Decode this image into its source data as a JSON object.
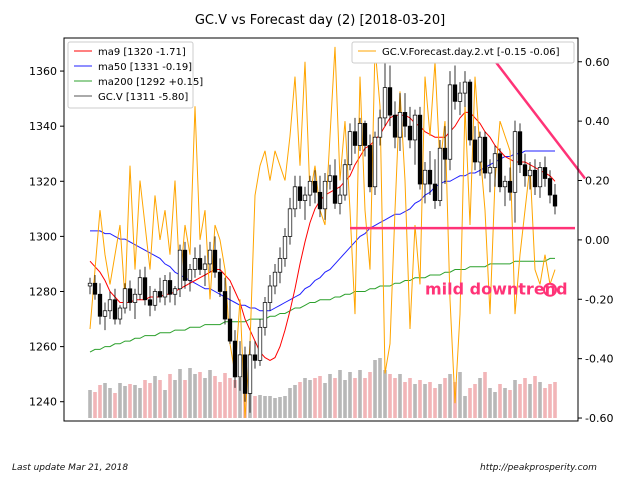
{
  "chart_data": {
    "type": "candlestick",
    "title": "GC.V vs Forecast day (2)  [2018-03-20]",
    "xlabel": "",
    "ylabel": "",
    "ylim": [
      1233,
      1372
    ],
    "yticks": [
      1240,
      1260,
      1280,
      1300,
      1320,
      1340,
      1360
    ],
    "y2lim": [
      -0.61,
      0.68
    ],
    "y2ticks": [
      "0.60",
      "0.40",
      "0.20",
      "0.00",
      "-0.20",
      "-0.40",
      "-0.60"
    ],
    "y2tick_values": [
      0.6,
      0.4,
      0.2,
      0.0,
      -0.2,
      -0.4,
      -0.6
    ],
    "grid": false,
    "legend_left": [
      {
        "label": "ma9 [1320 -1.71]",
        "color": "#ff0000"
      },
      {
        "label": "ma50 [1331 -0.19]",
        "color": "#1f1fff"
      },
      {
        "label": "ma200 [1292 +0.15]",
        "color": "#2ca02c"
      },
      {
        "label": "GC.V [1311 -5.80]",
        "color": "#555555"
      }
    ],
    "legend_right": [
      {
        "label": "GC.V.Forecast.day.2.vt [-0.15 -0.06]",
        "color": "#ffa500"
      }
    ],
    "candles": [
      [
        1282,
        1285,
        1279,
        1283
      ],
      [
        1283,
        1286,
        1277,
        1279
      ],
      [
        1279,
        1283,
        1268,
        1271
      ],
      [
        1271,
        1276,
        1266,
        1273
      ],
      [
        1273,
        1280,
        1270,
        1277
      ],
      [
        1277,
        1281,
        1268,
        1270
      ],
      [
        1270,
        1275,
        1268,
        1274
      ],
      [
        1274,
        1283,
        1272,
        1281
      ],
      [
        1281,
        1284,
        1273,
        1276
      ],
      [
        1276,
        1281,
        1270,
        1279
      ],
      [
        1279,
        1288,
        1277,
        1285
      ],
      [
        1285,
        1289,
        1275,
        1277
      ],
      [
        1277,
        1282,
        1271,
        1275
      ],
      [
        1275,
        1281,
        1273,
        1280
      ],
      [
        1280,
        1285,
        1276,
        1278
      ],
      [
        1278,
        1286,
        1275,
        1284
      ],
      [
        1284,
        1287,
        1276,
        1279
      ],
      [
        1279,
        1282,
        1275,
        1281
      ],
      [
        1281,
        1297,
        1278,
        1295
      ],
      [
        1295,
        1298,
        1281,
        1284
      ],
      [
        1284,
        1290,
        1280,
        1288
      ],
      [
        1288,
        1296,
        1285,
        1292
      ],
      [
        1292,
        1297,
        1286,
        1288
      ],
      [
        1288,
        1293,
        1282,
        1290
      ],
      [
        1290,
        1298,
        1287,
        1295
      ],
      [
        1295,
        1300,
        1285,
        1287
      ],
      [
        1287,
        1292,
        1278,
        1280
      ],
      [
        1280,
        1285,
        1268,
        1270
      ],
      [
        1270,
        1282,
        1261,
        1262
      ],
      [
        1262,
        1266,
        1245,
        1249
      ],
      [
        1249,
        1262,
        1244,
        1257
      ],
      [
        1257,
        1260,
        1240,
        1243
      ],
      [
        1243,
        1262,
        1236,
        1257
      ],
      [
        1257,
        1262,
        1252,
        1255
      ],
      [
        1255,
        1270,
        1253,
        1267
      ],
      [
        1267,
        1278,
        1264,
        1276
      ],
      [
        1276,
        1286,
        1273,
        1282
      ],
      [
        1282,
        1290,
        1279,
        1287
      ],
      [
        1287,
        1296,
        1283,
        1292
      ],
      [
        1292,
        1303,
        1289,
        1300
      ],
      [
        1300,
        1314,
        1297,
        1310
      ],
      [
        1310,
        1322,
        1307,
        1318
      ],
      [
        1318,
        1322,
        1310,
        1313
      ],
      [
        1313,
        1318,
        1306,
        1315
      ],
      [
        1315,
        1322,
        1311,
        1320
      ],
      [
        1320,
        1324,
        1312,
        1316
      ],
      [
        1316,
        1322,
        1307,
        1310
      ],
      [
        1310,
        1323,
        1306,
        1320
      ],
      [
        1320,
        1326,
        1317,
        1322
      ],
      [
        1322,
        1328,
        1310,
        1312
      ],
      [
        1312,
        1318,
        1308,
        1315
      ],
      [
        1315,
        1328,
        1313,
        1326
      ],
      [
        1326,
        1341,
        1324,
        1338
      ],
      [
        1338,
        1343,
        1330,
        1333
      ],
      [
        1333,
        1343,
        1331,
        1341
      ],
      [
        1341,
        1342,
        1329,
        1333
      ],
      [
        1333,
        1337,
        1316,
        1318
      ],
      [
        1318,
        1338,
        1315,
        1336
      ],
      [
        1336,
        1346,
        1333,
        1343
      ],
      [
        1343,
        1366,
        1340,
        1354
      ],
      [
        1354,
        1362,
        1340,
        1344
      ],
      [
        1344,
        1349,
        1332,
        1336
      ],
      [
        1336,
        1352,
        1331,
        1345
      ],
      [
        1345,
        1352,
        1336,
        1340
      ],
      [
        1340,
        1347,
        1332,
        1335
      ],
      [
        1335,
        1346,
        1326,
        1344
      ],
      [
        1344,
        1347,
        1317,
        1319
      ],
      [
        1319,
        1327,
        1312,
        1324
      ],
      [
        1324,
        1331,
        1315,
        1319
      ],
      [
        1319,
        1328,
        1310,
        1313
      ],
      [
        1313,
        1335,
        1311,
        1332
      ],
      [
        1332,
        1340,
        1319,
        1328
      ],
      [
        1328,
        1360,
        1324,
        1355
      ],
      [
        1355,
        1362,
        1346,
        1349
      ],
      [
        1349,
        1356,
        1344,
        1352
      ],
      [
        1352,
        1360,
        1347,
        1356
      ],
      [
        1356,
        1357,
        1333,
        1335
      ],
      [
        1335,
        1340,
        1324,
        1327
      ],
      [
        1327,
        1338,
        1322,
        1336
      ],
      [
        1336,
        1338,
        1321,
        1323
      ],
      [
        1323,
        1328,
        1316,
        1325
      ],
      [
        1325,
        1333,
        1318,
        1330
      ],
      [
        1330,
        1332,
        1316,
        1318
      ],
      [
        1318,
        1322,
        1311,
        1320
      ],
      [
        1320,
        1325,
        1313,
        1316
      ],
      [
        1316,
        1342,
        1305,
        1338
      ],
      [
        1338,
        1341,
        1323,
        1326
      ],
      [
        1326,
        1330,
        1318,
        1322
      ],
      [
        1322,
        1327,
        1317,
        1324
      ],
      [
        1324,
        1328,
        1315,
        1318
      ],
      [
        1318,
        1327,
        1314,
        1325
      ],
      [
        1325,
        1329,
        1318,
        1321
      ],
      [
        1321,
        1324,
        1312,
        1315
      ],
      [
        1315,
        1319,
        1308,
        1311
      ]
    ],
    "ma9": [
      1291,
      1289,
      1287,
      1284,
      1280,
      1278,
      1276,
      1276,
      1276,
      1277,
      1277,
      1277,
      1278,
      1278,
      1278,
      1279,
      1279,
      1280,
      1281,
      1282,
      1283,
      1284,
      1285,
      1286,
      1287,
      1288,
      1288,
      1286,
      1284,
      1280,
      1276,
      1270,
      1266,
      1262,
      1258,
      1256,
      1255,
      1256,
      1260,
      1266,
      1273,
      1281,
      1290,
      1298,
      1305,
      1310,
      1313,
      1315,
      1316,
      1317,
      1318,
      1320,
      1322,
      1326,
      1329,
      1332,
      1333,
      1335,
      1337,
      1340,
      1343,
      1344,
      1344,
      1344,
      1343,
      1341,
      1340,
      1338,
      1337,
      1336,
      1336,
      1336,
      1338,
      1340,
      1343,
      1345,
      1345,
      1343,
      1341,
      1338,
      1336,
      1333,
      1331,
      1329,
      1328,
      1327,
      1327,
      1327,
      1326,
      1325,
      1324,
      1323,
      1322,
      1320
    ],
    "ma50": [
      1302,
      1302,
      1302,
      1301,
      1301,
      1300,
      1299,
      1299,
      1298,
      1297,
      1296,
      1295,
      1294,
      1293,
      1292,
      1290,
      1289,
      1287,
      1286,
      1285,
      1284,
      1283,
      1282,
      1281,
      1281,
      1280,
      1279,
      1278,
      1277,
      1276,
      1275,
      1275,
      1274,
      1274,
      1273,
      1273,
      1273,
      1274,
      1275,
      1276,
      1277,
      1278,
      1279,
      1281,
      1282,
      1284,
      1285,
      1287,
      1288,
      1290,
      1292,
      1294,
      1296,
      1298,
      1300,
      1301,
      1303,
      1304,
      1305,
      1306,
      1307,
      1308,
      1308,
      1309,
      1310,
      1312,
      1313,
      1315,
      1316,
      1318,
      1319,
      1320,
      1320,
      1321,
      1322,
      1322,
      1323,
      1323,
      1324,
      1325,
      1326,
      1327,
      1328,
      1329,
      1329,
      1330,
      1330,
      1331,
      1331,
      1331,
      1331,
      1331,
      1331,
      1331
    ],
    "ma200": [
      1258,
      1259,
      1259,
      1260,
      1260,
      1261,
      1261,
      1262,
      1262,
      1263,
      1263,
      1264,
      1264,
      1264,
      1265,
      1265,
      1265,
      1266,
      1266,
      1266,
      1267,
      1267,
      1267,
      1268,
      1268,
      1268,
      1268,
      1269,
      1269,
      1269,
      1269,
      1269,
      1270,
      1270,
      1270,
      1270,
      1271,
      1271,
      1272,
      1272,
      1273,
      1274,
      1274,
      1275,
      1276,
      1276,
      1277,
      1277,
      1277,
      1278,
      1278,
      1279,
      1279,
      1280,
      1280,
      1280,
      1281,
      1281,
      1282,
      1282,
      1282,
      1283,
      1283,
      1284,
      1284,
      1285,
      1285,
      1285,
      1286,
      1286,
      1286,
      1287,
      1287,
      1288,
      1288,
      1288,
      1289,
      1289,
      1289,
      1289,
      1290,
      1290,
      1290,
      1290,
      1290,
      1291,
      1291,
      1291,
      1291,
      1291,
      1291,
      1291,
      1292,
      1292
    ],
    "forecast": [
      -0.3,
      -0.1,
      0.1,
      -0.05,
      -0.15,
      -0.05,
      0.05,
      -0.2,
      0.25,
      -0.1,
      0.2,
      0.05,
      -0.1,
      0.15,
      0.0,
      0.1,
      -0.05,
      0.2,
      -0.15,
      0.05,
      -0.05,
      0.45,
      0.0,
      0.1,
      -0.2,
      0.05,
      0.0,
      -0.1,
      -0.35,
      -0.45,
      -0.2,
      -0.6,
      -0.35,
      0.15,
      0.25,
      0.3,
      0.2,
      0.3,
      0.25,
      0.2,
      0.35,
      0.55,
      0.25,
      0.6,
      0.15,
      0.25,
      0.1,
      0.05,
      0.35,
      0.65,
      0.2,
      0.4,
      0.1,
      -0.25,
      0.55,
      0.1,
      -0.1,
      0.65,
      0.45,
      -0.45,
      -0.35,
      0.1,
      0.5,
      0.2,
      -0.3,
      0.05,
      -0.15,
      0.55,
      0.35,
      0.6,
      0.25,
      0.4,
      -0.2,
      -0.55,
      -0.25,
      0.45,
      0.05,
      0.55,
      0.3,
      0.1,
      -0.25,
      0.2,
      0.4,
      0.35,
      0.3,
      -0.25,
      -0.05,
      0.1,
      0.25,
      -0.1,
      -0.15,
      -0.05,
      -0.15,
      -0.1
    ],
    "volume": [
      0.28,
      0.26,
      0.33,
      0.35,
      0.3,
      0.25,
      0.35,
      0.32,
      0.34,
      0.33,
      0.3,
      0.38,
      0.35,
      0.42,
      0.38,
      0.28,
      0.44,
      0.38,
      0.49,
      0.38,
      0.5,
      0.44,
      0.46,
      0.4,
      0.48,
      0.42,
      0.36,
      0.45,
      0.4,
      0.38,
      0.4,
      0.34,
      0.28,
      0.22,
      0.23,
      0.22,
      0.22,
      0.2,
      0.21,
      0.22,
      0.3,
      0.33,
      0.36,
      0.4,
      0.38,
      0.4,
      0.42,
      0.35,
      0.44,
      0.4,
      0.48,
      0.38,
      0.46,
      0.4,
      0.48,
      0.4,
      0.46,
      0.58,
      0.6,
      0.48,
      0.44,
      0.4,
      0.44,
      0.36,
      0.4,
      0.34,
      0.38,
      0.34,
      0.36,
      0.3,
      0.34,
      0.4,
      0.44,
      0.36,
      0.46,
      0.22,
      0.3,
      0.34,
      0.4,
      0.46,
      0.3,
      0.26,
      0.34,
      0.3,
      0.28,
      0.38,
      0.34,
      0.4,
      0.34,
      0.42,
      0.36,
      0.3,
      0.34,
      0.36
    ],
    "annotations": [
      {
        "type": "hline",
        "y": 1303,
        "x_start_bar": 52,
        "x_end_bar": 93,
        "color": "#ff3377"
      },
      {
        "type": "trendline",
        "from": {
          "bar": 80,
          "y": 1366
        },
        "to": {
          "bar": 99,
          "y": 1321
        },
        "color": "#ff3377"
      },
      {
        "type": "text",
        "text": "mild downtrend",
        "color": "#ff3377",
        "marker": "circle",
        "anchor_bar": 68,
        "y": 1281
      }
    ]
  },
  "footer": {
    "left": "Last update Mar 21, 2018",
    "right": "http://peakprosperity.com"
  }
}
